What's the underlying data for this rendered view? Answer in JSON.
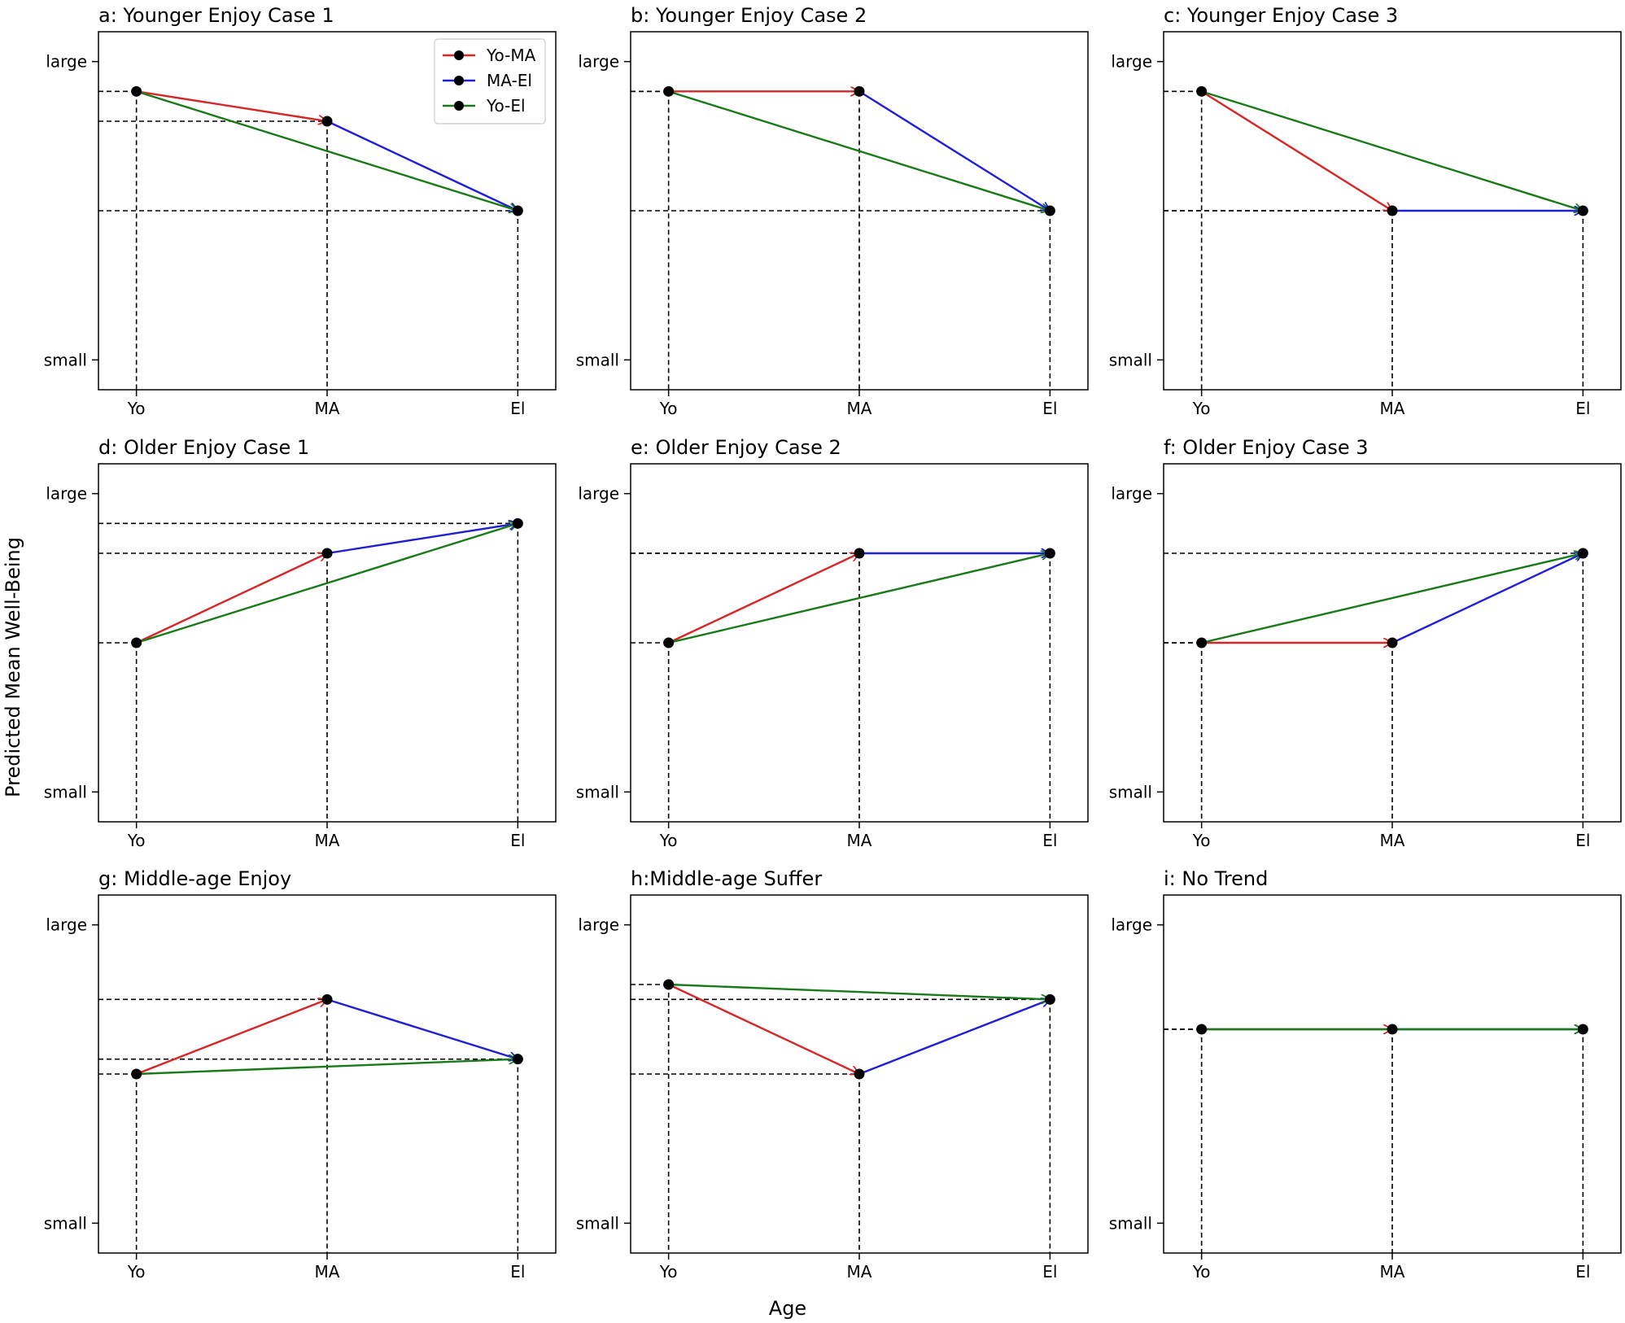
{
  "figure": {
    "ylabel": "Predicted Mean Well-Being",
    "xlabel": "Age"
  },
  "colors": {
    "Yo-MA": "#d62728",
    "MA-El": "#1f1fd6",
    "Yo-El": "#1a7a1a",
    "marker": "#000000",
    "guide": "#000000"
  },
  "legend": [
    "Yo-MA",
    "MA-El",
    "Yo-El"
  ],
  "chart_data": [
    {
      "type": "line",
      "title": "a: Younger Enjoy Case 1",
      "categories": [
        "Yo",
        "MA",
        "El"
      ],
      "values": [
        0.9,
        0.8,
        0.5
      ],
      "yticks": [
        "small",
        "large"
      ],
      "ylim": [
        -0.1,
        1.1
      ]
    },
    {
      "type": "line",
      "title": "b: Younger Enjoy Case 2",
      "categories": [
        "Yo",
        "MA",
        "El"
      ],
      "values": [
        0.9,
        0.9,
        0.5
      ],
      "yticks": [
        "small",
        "large"
      ],
      "ylim": [
        -0.1,
        1.1
      ]
    },
    {
      "type": "line",
      "title": "c: Younger Enjoy Case 3",
      "categories": [
        "Yo",
        "MA",
        "El"
      ],
      "values": [
        0.9,
        0.5,
        0.5
      ],
      "yticks": [
        "small",
        "large"
      ],
      "ylim": [
        -0.1,
        1.1
      ]
    },
    {
      "type": "line",
      "title": "d: Older Enjoy Case 1",
      "categories": [
        "Yo",
        "MA",
        "El"
      ],
      "values": [
        0.5,
        0.8,
        0.9
      ],
      "yticks": [
        "small",
        "large"
      ],
      "ylim": [
        -0.1,
        1.1
      ]
    },
    {
      "type": "line",
      "title": "e: Older Enjoy Case 2",
      "categories": [
        "Yo",
        "MA",
        "El"
      ],
      "values": [
        0.5,
        0.8,
        0.8
      ],
      "yticks": [
        "small",
        "large"
      ],
      "ylim": [
        -0.1,
        1.1
      ]
    },
    {
      "type": "line",
      "title": "f: Older Enjoy Case 3",
      "categories": [
        "Yo",
        "MA",
        "El"
      ],
      "values": [
        0.5,
        0.5,
        0.8
      ],
      "yticks": [
        "small",
        "large"
      ],
      "ylim": [
        -0.1,
        1.1
      ]
    },
    {
      "type": "line",
      "title": "g: Middle-age Enjoy",
      "categories": [
        "Yo",
        "MA",
        "El"
      ],
      "values": [
        0.5,
        0.75,
        0.55
      ],
      "yticks": [
        "small",
        "large"
      ],
      "ylim": [
        -0.1,
        1.1
      ]
    },
    {
      "type": "line",
      "title": "h:Middle-age Suffer",
      "categories": [
        "Yo",
        "MA",
        "El"
      ],
      "values": [
        0.8,
        0.5,
        0.75
      ],
      "yticks": [
        "small",
        "large"
      ],
      "ylim": [
        -0.1,
        1.1
      ]
    },
    {
      "type": "line",
      "title": "i: No Trend",
      "categories": [
        "Yo",
        "MA",
        "El"
      ],
      "values": [
        0.65,
        0.65,
        0.65
      ],
      "yticks": [
        "small",
        "large"
      ],
      "ylim": [
        -0.1,
        1.1
      ]
    }
  ]
}
